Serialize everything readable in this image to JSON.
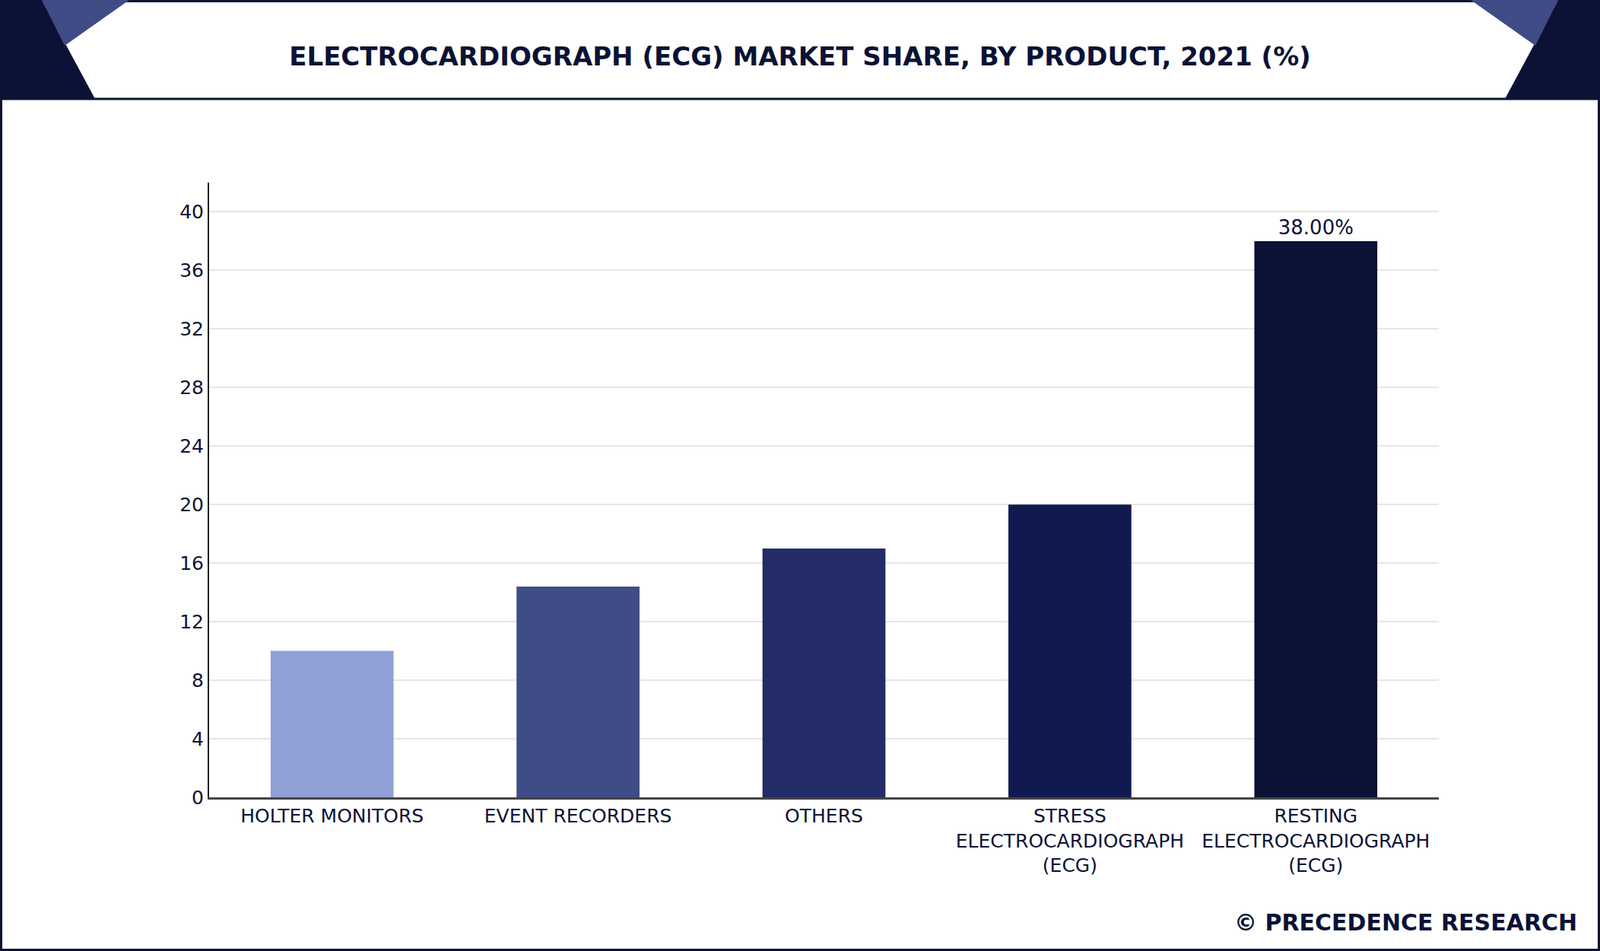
{
  "chart_data": {
    "type": "bar",
    "title": "ELECTROCARDIOGRAPH (ECG) MARKET SHARE, BY PRODUCT, 2021 (%)",
    "categories": [
      "HOLTER MONITORS",
      "EVENT RECORDERS",
      "OTHERS",
      "STRESS ELECTROCARDIOGRAPH (ECG)",
      "RESTING ELECTROCARDIOGRAPH (ECG)"
    ],
    "values": [
      10,
      14.4,
      17,
      20,
      38
    ],
    "value_labels": [
      null,
      null,
      null,
      null,
      "38.00%"
    ],
    "data_labels": true,
    "colors": [
      "#8ea0d5",
      "#3f4c85",
      "#232c66",
      "#111a4f",
      "#0b1235"
    ],
    "ylim": [
      0,
      42
    ],
    "yticks": [
      0,
      4,
      8,
      12,
      16,
      20,
      24,
      28,
      32,
      36,
      40
    ],
    "grid": true,
    "source": "© PRECEDENCE RESEARCH"
  }
}
